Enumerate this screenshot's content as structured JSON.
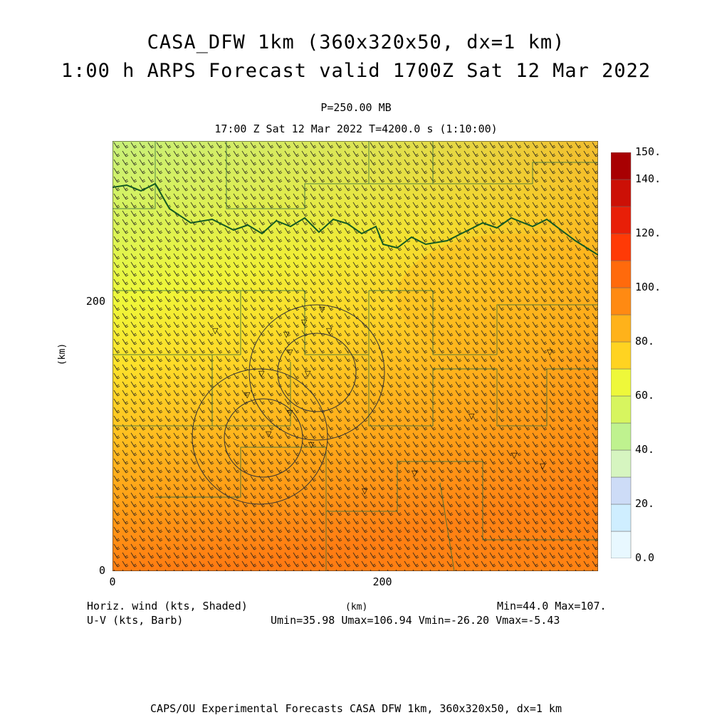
{
  "titles": {
    "line1": "CASA_DFW 1km (360x320x50, dx=1 km)",
    "line2": "1:00 h ARPS Forecast valid 1700Z Sat 12 Mar 2022",
    "level": "P=250.00 MB",
    "time": "17:00 Z Sat 12 Mar 2022    T=4200.0 s (1:10:00)"
  },
  "axes": {
    "x_ticks": [
      "0",
      "200"
    ],
    "y_ticks": [
      "200",
      "0"
    ],
    "x_label": "(km)",
    "y_label": "(km)",
    "x_range_km": [
      0,
      360
    ],
    "y_range_km": [
      0,
      320
    ]
  },
  "colorbar": {
    "labels": [
      "150.",
      "140.",
      "120.",
      "100.",
      "80.",
      "60.",
      "40.",
      "20.",
      "0.0"
    ],
    "levels": [
      0,
      10,
      20,
      30,
      40,
      50,
      60,
      70,
      80,
      90,
      100,
      110,
      120,
      130,
      140,
      150
    ],
    "colors": [
      "#e8f8ff",
      "#cfeeff",
      "#cddcf7",
      "#d6f5c0",
      "#bff28f",
      "#d7f55f",
      "#eef83a",
      "#ffd321",
      "#ffb21a",
      "#ff8a12",
      "#ff6a0c",
      "#ff3a06",
      "#e81f08",
      "#cc1006",
      "#a80002"
    ]
  },
  "footer": {
    "left1": "Horiz. wind (kts, Shaded)",
    "left2": "U-V (kts, Barb)",
    "right1": "Min=44.0 Max=107.",
    "right2": "Umin=35.98 Umax=106.94 Vmin=-26.20 Vmax=-5.43",
    "center": "(km)",
    "bottom": "CAPS/OU Experimental Forecasts   CASA DFW 1km, 360x320x50, dx=1 km"
  },
  "field": {
    "min": 44.0,
    "max": 107.0,
    "u_range": [
      35.98,
      106.94
    ],
    "v_range": [
      -26.2,
      -5.43
    ]
  },
  "colors": {
    "county_lines": "#2f6b3c",
    "coast_line": "#145a23",
    "ring_lines": "#333333"
  }
}
